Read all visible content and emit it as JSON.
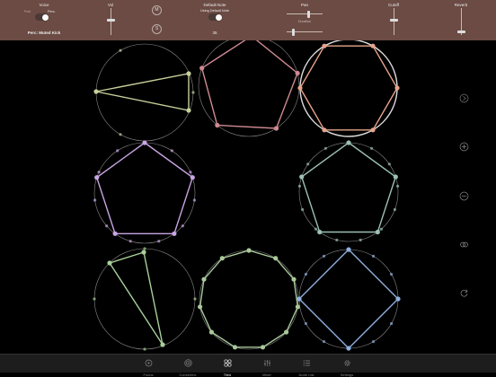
{
  "topbar": {
    "voice": {
      "label": "Voice",
      "toggle_left": "Patt",
      "toggle_right": "Perc.",
      "on": true,
      "selected": "Perc: Muted Kick"
    },
    "vol": {
      "label": "Vol",
      "level": 0.55
    },
    "mute_label": "M",
    "solo_label": "S",
    "default_note": {
      "label": "Default Note",
      "sub_label": "Using Default Note",
      "on": true,
      "value": "35"
    },
    "pan": {
      "label": "Pan",
      "sub_label": "Duration",
      "level": 0.6
    },
    "cutoff": {
      "label": "Cutoff",
      "level": 0.6
    },
    "reverb": {
      "label": "Reverb",
      "level": 0.5
    }
  },
  "circles": [
    {
      "color": "#c5d09a",
      "sides": 3,
      "dots": 3
    },
    {
      "color": "#cf8a93",
      "sides": 5,
      "dots": 5
    },
    {
      "color": "#e8a48a",
      "sides": 6,
      "dots": 6
    },
    {
      "color": "#c9a6e3",
      "sides": 5,
      "dots": 11
    },
    {
      "color": "#9cc0b2",
      "sides": 5,
      "dots": 13
    },
    {
      "color": "#a8d09a",
      "sides": 3,
      "dots": 4
    },
    {
      "color": "#a9c89a",
      "sides": 11,
      "dots": 11
    },
    {
      "color": "#8fb0e0",
      "sides": 4,
      "dots": 12
    }
  ],
  "side_icons": [
    "play-icon",
    "plus-icon",
    "minus-icon",
    "link-icon",
    "refresh-icon"
  ],
  "tabs": [
    {
      "name": "Focus",
      "icon": "focus-icon",
      "active": false
    },
    {
      "name": "Concentric",
      "icon": "concentric-icon",
      "active": false
    },
    {
      "name": "Tiled",
      "icon": "tiled-icon",
      "active": true
    },
    {
      "name": "Mixer",
      "icon": "mixer-icon",
      "active": false
    },
    {
      "name": "Node List",
      "icon": "node-list-icon",
      "active": false
    },
    {
      "name": "Settings",
      "icon": "settings-gear-icon",
      "active": false
    }
  ]
}
